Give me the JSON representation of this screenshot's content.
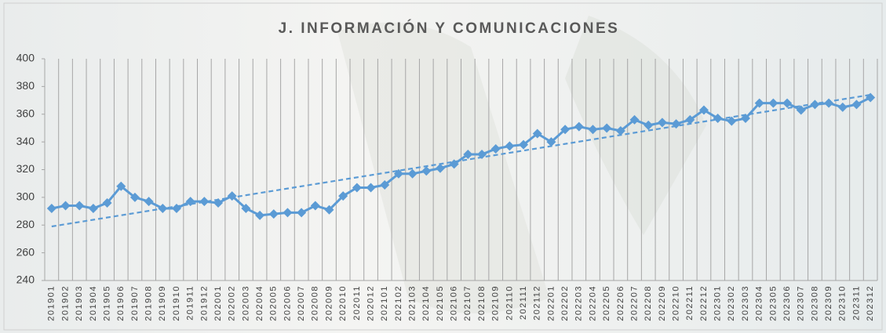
{
  "chart_data": {
    "type": "line",
    "title": "J. INFORMACIÓN Y COMUNICACIONES",
    "categories": [
      "201901",
      "201902",
      "201903",
      "201904",
      "201905",
      "201906",
      "201907",
      "201908",
      "201909",
      "201910",
      "201911",
      "201912",
      "202001",
      "202002",
      "202003",
      "202004",
      "202005",
      "202006",
      "202007",
      "202008",
      "202009",
      "202010",
      "202011",
      "202012",
      "202101",
      "202102",
      "202103",
      "202104",
      "202105",
      "202106",
      "202107",
      "202108",
      "202109",
      "202110",
      "202111",
      "202112",
      "202201",
      "202202",
      "202203",
      "202204",
      "202205",
      "202206",
      "202207",
      "202208",
      "202209",
      "202210",
      "202211",
      "202212",
      "202301",
      "202302",
      "202303",
      "202304",
      "202305",
      "202306",
      "202307",
      "202308",
      "202309",
      "202310",
      "202311",
      "202312"
    ],
    "values": [
      292,
      294,
      294,
      292,
      296,
      308,
      300,
      297,
      292,
      292,
      297,
      297,
      296,
      301,
      292,
      287,
      288,
      289,
      289,
      294,
      291,
      301,
      307,
      307,
      309,
      317,
      317,
      319,
      321,
      324,
      331,
      331,
      335,
      337,
      338,
      346,
      340,
      349,
      351,
      349,
      350,
      348,
      356,
      352,
      354,
      353,
      356,
      363,
      357,
      355,
      357,
      368,
      368,
      368,
      363,
      367,
      368,
      365,
      367,
      372
    ],
    "color": "#5b9bd5",
    "trendline": {
      "values": [
        279,
        374
      ],
      "color": "#5b9bd5"
    },
    "ylim": [
      240,
      400
    ],
    "yticks": [
      240,
      260,
      280,
      300,
      320,
      340,
      360,
      380,
      400
    ]
  }
}
